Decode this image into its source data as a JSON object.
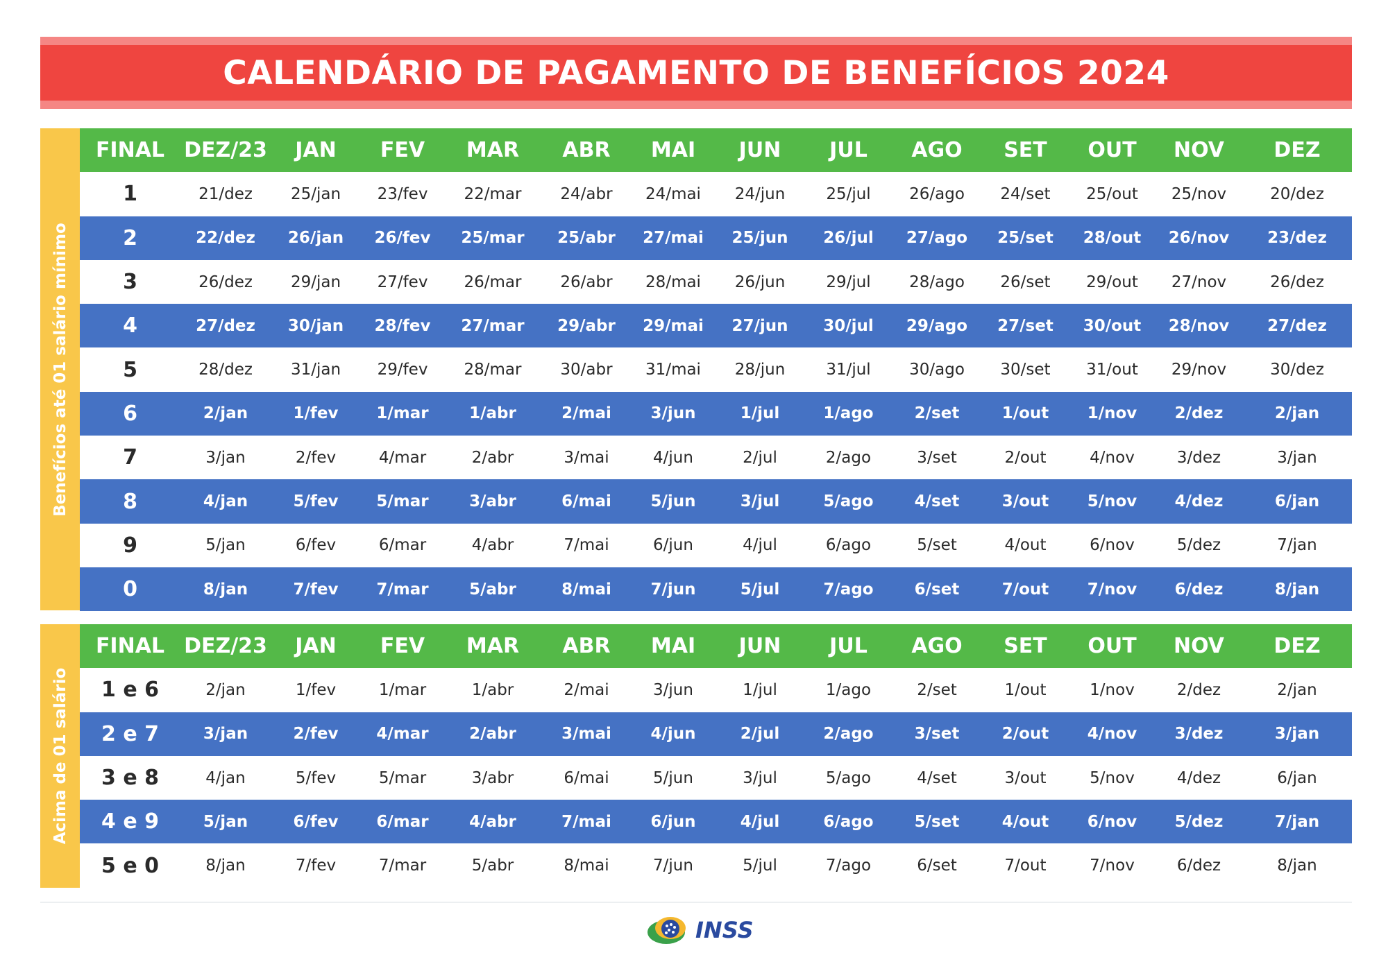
{
  "title": "CALENDÁRIO DE PAGAMENTO DE BENEFÍCIOS 2024",
  "columns": [
    "FINAL",
    "DEZ/23",
    "JAN",
    "FEV",
    "MAR",
    "ABR",
    "MAI",
    "JUN",
    "JUL",
    "AGO",
    "SET",
    "OUT",
    "NOV",
    "DEZ"
  ],
  "sections": [
    {
      "label": "Benefícios até 01 salário mínimo",
      "rows": [
        [
          "1",
          "21/dez",
          "25/jan",
          "23/fev",
          "22/mar",
          "24/abr",
          "24/mai",
          "24/jun",
          "25/jul",
          "26/ago",
          "24/set",
          "25/out",
          "25/nov",
          "20/dez"
        ],
        [
          "2",
          "22/dez",
          "26/jan",
          "26/fev",
          "25/mar",
          "25/abr",
          "27/mai",
          "25/jun",
          "26/jul",
          "27/ago",
          "25/set",
          "28/out",
          "26/nov",
          "23/dez"
        ],
        [
          "3",
          "26/dez",
          "29/jan",
          "27/fev",
          "26/mar",
          "26/abr",
          "28/mai",
          "26/jun",
          "29/jul",
          "28/ago",
          "26/set",
          "29/out",
          "27/nov",
          "26/dez"
        ],
        [
          "4",
          "27/dez",
          "30/jan",
          "28/fev",
          "27/mar",
          "29/abr",
          "29/mai",
          "27/jun",
          "30/jul",
          "29/ago",
          "27/set",
          "30/out",
          "28/nov",
          "27/dez"
        ],
        [
          "5",
          "28/dez",
          "31/jan",
          "29/fev",
          "28/mar",
          "30/abr",
          "31/mai",
          "28/jun",
          "31/jul",
          "30/ago",
          "30/set",
          "31/out",
          "29/nov",
          "30/dez"
        ],
        [
          "6",
          "2/jan",
          "1/fev",
          "1/mar",
          "1/abr",
          "2/mai",
          "3/jun",
          "1/jul",
          "1/ago",
          "2/set",
          "1/out",
          "1/nov",
          "2/dez",
          "2/jan"
        ],
        [
          "7",
          "3/jan",
          "2/fev",
          "4/mar",
          "2/abr",
          "3/mai",
          "4/jun",
          "2/jul",
          "2/ago",
          "3/set",
          "2/out",
          "4/nov",
          "3/dez",
          "3/jan"
        ],
        [
          "8",
          "4/jan",
          "5/fev",
          "5/mar",
          "3/abr",
          "6/mai",
          "5/jun",
          "3/jul",
          "5/ago",
          "4/set",
          "3/out",
          "5/nov",
          "4/dez",
          "6/jan"
        ],
        [
          "9",
          "5/jan",
          "6/fev",
          "6/mar",
          "4/abr",
          "7/mai",
          "6/jun",
          "4/jul",
          "6/ago",
          "5/set",
          "4/out",
          "6/nov",
          "5/dez",
          "7/jan"
        ],
        [
          "0",
          "8/jan",
          "7/fev",
          "7/mar",
          "5/abr",
          "8/mai",
          "7/jun",
          "5/jul",
          "7/ago",
          "6/set",
          "7/out",
          "7/nov",
          "6/dez",
          "8/jan"
        ]
      ]
    },
    {
      "label": "Acima de 01 salário",
      "rows": [
        [
          "1 e 6",
          "2/jan",
          "1/fev",
          "1/mar",
          "1/abr",
          "2/mai",
          "3/jun",
          "1/jul",
          "1/ago",
          "2/set",
          "1/out",
          "1/nov",
          "2/dez",
          "2/jan"
        ],
        [
          "2 e 7",
          "3/jan",
          "2/fev",
          "4/mar",
          "2/abr",
          "3/mai",
          "4/jun",
          "2/jul",
          "2/ago",
          "3/set",
          "2/out",
          "4/nov",
          "3/dez",
          "3/jan"
        ],
        [
          "3 e 8",
          "4/jan",
          "5/fev",
          "5/mar",
          "3/abr",
          "6/mai",
          "5/jun",
          "3/jul",
          "5/ago",
          "4/set",
          "3/out",
          "5/nov",
          "4/dez",
          "6/jan"
        ],
        [
          "4 e 9",
          "5/jan",
          "6/fev",
          "6/mar",
          "4/abr",
          "7/mai",
          "6/jun",
          "4/jul",
          "6/ago",
          "5/set",
          "4/out",
          "6/nov",
          "5/dez",
          "7/jan"
        ],
        [
          "5 e 0",
          "8/jan",
          "7/fev",
          "7/mar",
          "5/abr",
          "8/mai",
          "7/jun",
          "5/jul",
          "7/ago",
          "6/set",
          "7/out",
          "7/nov",
          "6/dez",
          "8/jan"
        ]
      ]
    }
  ],
  "footer": {
    "logo_text": "INSS",
    "logo_icon": "inss-logo-icon"
  },
  "colors": {
    "title_bar": "#ef4540",
    "header_row": "#54b948",
    "stripe_row": "#4572c4",
    "side_label": "#f9c74a"
  }
}
